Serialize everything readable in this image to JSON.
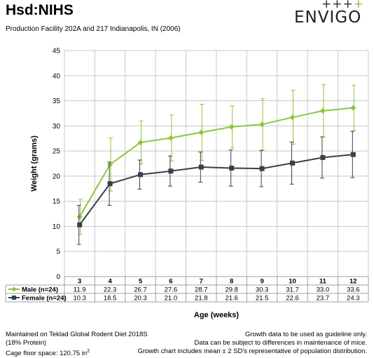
{
  "header": {
    "title": "Hsd:NIHS",
    "subtitle": "Production Facility 202A and 217 Indianapolis, IN (2006)",
    "logo_text": "ENVIGO",
    "logo_marks_dark": "+++",
    "logo_marks_accent": "+"
  },
  "chart_data": {
    "type": "line",
    "title": "",
    "xlabel": "Age (weeks)",
    "ylabel": "Weight (grams)",
    "ylim": [
      0,
      45
    ],
    "yticks": [
      "0",
      "5",
      "10",
      "15",
      "20",
      "25",
      "30",
      "35",
      "40",
      "45"
    ],
    "categories": [
      "3",
      "4",
      "5",
      "6",
      "7",
      "8",
      "9",
      "10",
      "11",
      "12"
    ],
    "grid": true,
    "series": [
      {
        "name": "Male (n=24)",
        "color": "#8dc63f",
        "marker": "diamond",
        "values": [
          11.9,
          22.3,
          26.7,
          27.6,
          28.7,
          29.8,
          30.3,
          31.7,
          33.0,
          33.6
        ],
        "labels": [
          "11.9",
          "22.3",
          "26.7",
          "27.6",
          "28.7",
          "29.8",
          "30.3",
          "31.7",
          "33.0",
          "33.6"
        ],
        "error": [
          3.5,
          5.3,
          4.3,
          4.6,
          5.6,
          4.2,
          5.1,
          5.4,
          5.2,
          4.5
        ]
      },
      {
        "name": "Female (n=24)",
        "color": "#3a4049",
        "marker": "square",
        "values": [
          10.3,
          18.5,
          20.3,
          21.0,
          21.8,
          21.6,
          21.5,
          22.6,
          23.7,
          24.3
        ],
        "labels": [
          "10.3",
          "18.5",
          "20.3",
          "21.0",
          "21.8",
          "21.6",
          "21.5",
          "22.6",
          "23.7",
          "24.3"
        ],
        "error": [
          3.9,
          4.3,
          2.9,
          3.0,
          3.0,
          3.6,
          3.6,
          4.2,
          4.1,
          4.6
        ]
      }
    ]
  },
  "footer": {
    "left_lines": [
      "Maintained on Teklad Global Rodent Diet 2018S",
      "(18% Protein)"
    ],
    "left_cage": "Cage floor space: 120.75 in",
    "left_cage_sup": "2",
    "right_lines": [
      "Growth data to be used as guideline only.",
      "Data can be subject to differences in maintenance of mice.",
      "Growth chart includes mean ± 2 SD's representative of population distribution."
    ]
  }
}
